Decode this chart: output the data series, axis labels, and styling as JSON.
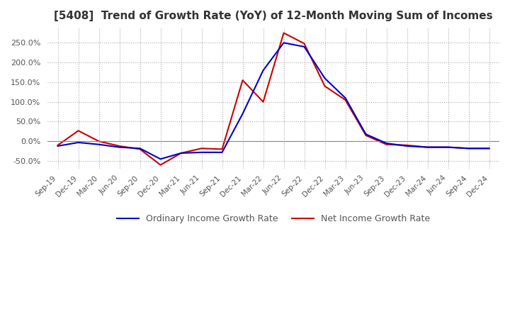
{
  "title": "[5408]  Trend of Growth Rate (YoY) of 12-Month Moving Sum of Incomes",
  "legend_labels": [
    "Ordinary Income Growth Rate",
    "Net Income Growth Rate"
  ],
  "line_colors": [
    "#0000CC",
    "#CC0000"
  ],
  "background_color": "#FFFFFF",
  "grid_color": "#AAAAAA",
  "ylim": [
    -70,
    290
  ],
  "yticks": [
    -50,
    0,
    50,
    100,
    150,
    200,
    250
  ],
  "x_labels": [
    "Sep-19",
    "Dec-19",
    "Mar-20",
    "Jun-20",
    "Sep-20",
    "Dec-20",
    "Mar-21",
    "Jun-21",
    "Sep-21",
    "Dec-21",
    "Mar-22",
    "Jun-22",
    "Sep-22",
    "Dec-22",
    "Mar-23",
    "Jun-23",
    "Sep-23",
    "Dec-23",
    "Mar-24",
    "Jun-24",
    "Sep-24",
    "Dec-24"
  ],
  "ordinary_income": [
    -12,
    -3,
    -8,
    -15,
    -18,
    -45,
    -30,
    -28,
    -28,
    70,
    180,
    250,
    240,
    160,
    110,
    18,
    -5,
    -12,
    -15,
    -15,
    -18,
    -18
  ],
  "net_income": [
    -10,
    27,
    0,
    -12,
    -20,
    -60,
    -30,
    -18,
    -20,
    155,
    100,
    275,
    248,
    140,
    105,
    15,
    -8,
    -10,
    -15,
    -15,
    -18,
    -18
  ]
}
